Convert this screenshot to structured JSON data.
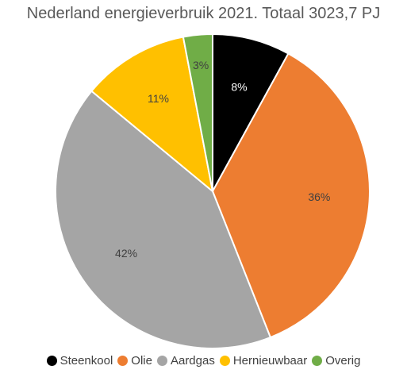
{
  "chart_data": {
    "type": "pie",
    "title": "Nederland energieverbruik 2021. Totaal 3023,7 PJ",
    "categories": [
      "Steenkool",
      "Olie",
      "Aardgas",
      "Hernieuwbaar",
      "Overig"
    ],
    "values": [
      8,
      36,
      42,
      11,
      3
    ],
    "labels": [
      "8%",
      "36%",
      "42%",
      "11%",
      "3%"
    ],
    "colors": [
      "#000000",
      "#ED7D31",
      "#A5A5A5",
      "#FFC000",
      "#70AD47"
    ],
    "legend_position": "bottom"
  }
}
